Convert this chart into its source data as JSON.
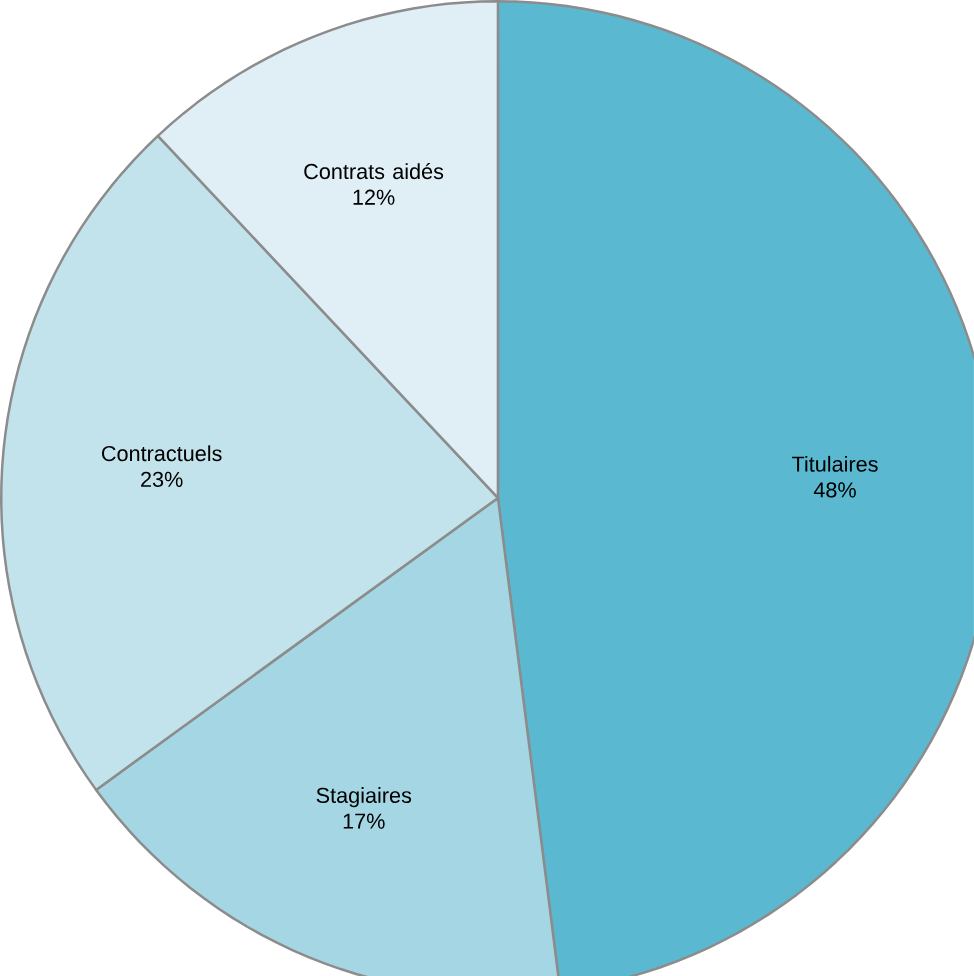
{
  "chart_data": {
    "type": "pie",
    "categories": [
      "Titulaires",
      "Stagiaires",
      "Contractuels",
      "Contrats aidés"
    ],
    "values": [
      48,
      17,
      23,
      12
    ],
    "value_labels": [
      "48%",
      "17%",
      "23%",
      "12%"
    ],
    "colors": [
      "#5bb8d1",
      "#a5d6e4",
      "#c3e3ec",
      "#e0eff6"
    ]
  }
}
